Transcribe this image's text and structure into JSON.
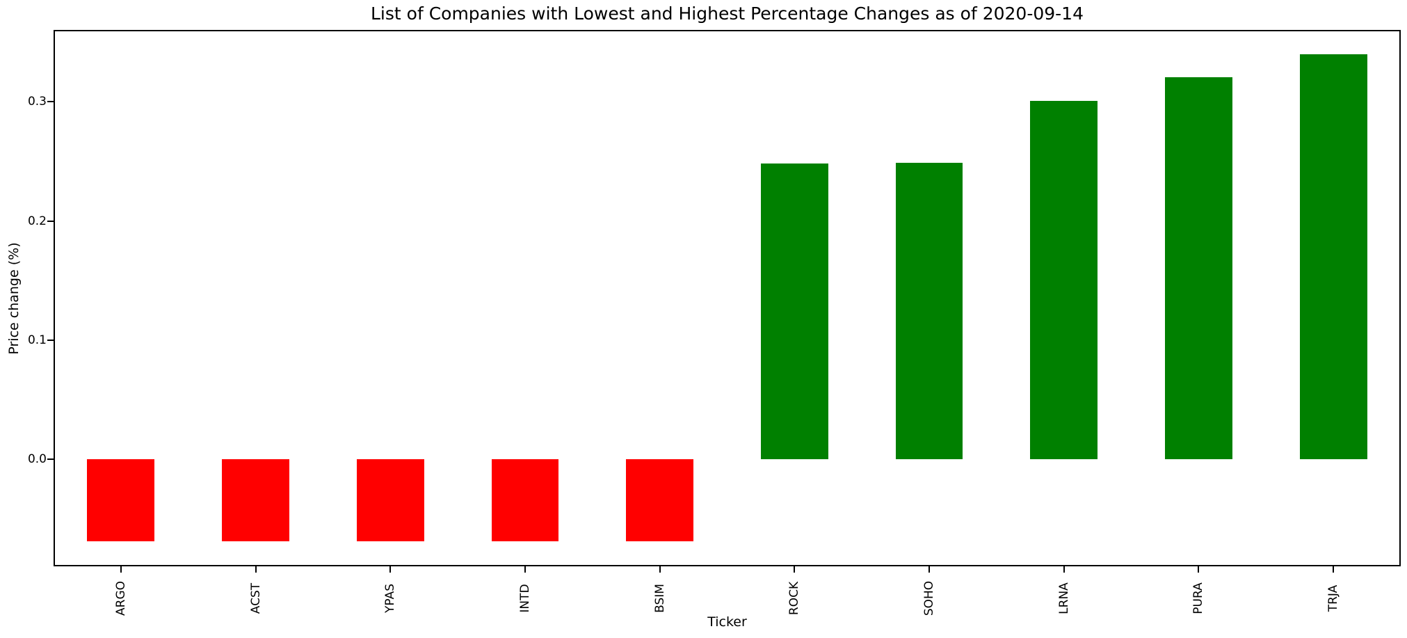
{
  "figure": {
    "background": "#ffffff"
  },
  "chart_data": {
    "type": "bar",
    "title": "List of Companies with Lowest and Highest Percentage Changes as of 2020-09-14",
    "xlabel": "Ticker",
    "ylabel": "Price change (%)",
    "categories": [
      "ARGO",
      "ACST",
      "YPAS",
      "INTD",
      "BSIM",
      "ROCK",
      "SOHO",
      "LRNA",
      "PURA",
      "TRJA"
    ],
    "values": [
      -0.069,
      -0.069,
      -0.069,
      -0.069,
      -0.069,
      0.248,
      0.249,
      0.301,
      0.321,
      0.34
    ],
    "bar_colors": [
      "#ff0000",
      "#ff0000",
      "#ff0000",
      "#ff0000",
      "#ff0000",
      "#008000",
      "#008000",
      "#008000",
      "#008000",
      "#008000"
    ],
    "negative_color": "#ff0000",
    "positive_color": "#008000",
    "yticks": [
      0.0,
      0.1,
      0.2,
      0.3
    ],
    "ytick_labels": [
      "0.0",
      "0.1",
      "0.2",
      "0.3"
    ],
    "ylim": [
      -0.0903,
      0.3605
    ],
    "xtick_rotation": 90,
    "bar_width_fraction": 0.5,
    "grid": false,
    "legend": false,
    "spines": "all",
    "text_color": "#000000"
  }
}
